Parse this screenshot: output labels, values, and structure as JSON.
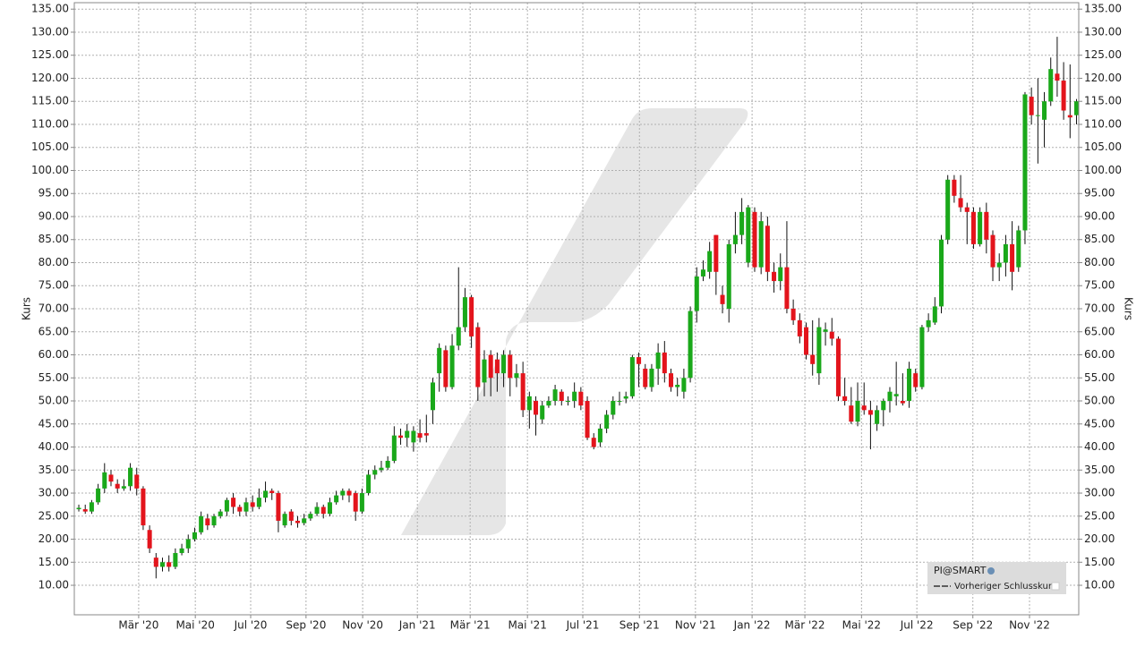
{
  "chart_data": {
    "type": "candlestick",
    "y_label": "Kurs",
    "legend": [
      "PI@SMART",
      "Vorheriger Schlusskurs"
    ],
    "legend_position": "lower right",
    "up_color": "#1aa81a",
    "down_color": "#e3141c",
    "grid": true,
    "ylim": [
      3.6,
      136.4
    ],
    "yticks": [
      {
        "value": 10,
        "label": "10.00"
      },
      {
        "value": 15,
        "label": "15.00"
      },
      {
        "value": 20,
        "label": "20.00"
      },
      {
        "value": 25,
        "label": "25.00"
      },
      {
        "value": 30,
        "label": "30.00"
      },
      {
        "value": 35,
        "label": "35.00"
      },
      {
        "value": 40,
        "label": "40.00"
      },
      {
        "value": 45,
        "label": "45.00"
      },
      {
        "value": 50,
        "label": "50.00"
      },
      {
        "value": 55,
        "label": "55.00"
      },
      {
        "value": 60,
        "label": "60.00"
      },
      {
        "value": 65,
        "label": "65.00"
      },
      {
        "value": 70,
        "label": "70.00"
      },
      {
        "value": 75,
        "label": "75.00"
      },
      {
        "value": 80,
        "label": "80.00"
      },
      {
        "value": 85,
        "label": "85.00"
      },
      {
        "value": 90,
        "label": "90.00"
      },
      {
        "value": 95,
        "label": "95.00"
      },
      {
        "value": 100,
        "label": "100.00"
      },
      {
        "value": 105,
        "label": "105.00"
      },
      {
        "value": 110,
        "label": "110.00"
      },
      {
        "value": 115,
        "label": "115.00"
      },
      {
        "value": 120,
        "label": "120.00"
      },
      {
        "value": 125,
        "label": "125.00"
      },
      {
        "value": 130,
        "label": "130.00"
      },
      {
        "value": 135,
        "label": "135.00"
      }
    ],
    "xlim": [
      -0.7,
      155.35
    ],
    "xticks": [
      {
        "value": 9.3,
        "label": "Mär '20"
      },
      {
        "value": 18.1,
        "label": "Mai '20"
      },
      {
        "value": 26.7,
        "label": "Jul '20"
      },
      {
        "value": 35.3,
        "label": "Sep '20"
      },
      {
        "value": 44.1,
        "label": "Nov '20"
      },
      {
        "value": 52.6,
        "label": "Jan '21"
      },
      {
        "value": 60.8,
        "label": "Mär '21"
      },
      {
        "value": 69.7,
        "label": "Mai '21"
      },
      {
        "value": 78.3,
        "label": "Jul '21"
      },
      {
        "value": 87.1,
        "label": "Sep '21"
      },
      {
        "value": 95.8,
        "label": "Nov '21"
      },
      {
        "value": 104.6,
        "label": "Jan '22"
      },
      {
        "value": 112.8,
        "label": "Mär '22"
      },
      {
        "value": 121.6,
        "label": "Mai '22"
      },
      {
        "value": 130.2,
        "label": "Jul '22"
      },
      {
        "value": 138.9,
        "label": "Sep '22"
      },
      {
        "value": 147.7,
        "label": "Nov '22"
      }
    ],
    "open": [
      26.5,
      26.5,
      26,
      28,
      31,
      34,
      32,
      31,
      31.5,
      34,
      31,
      22,
      16,
      14,
      15,
      14,
      17,
      18,
      20,
      21.5,
      24.5,
      23,
      25,
      26,
      29,
      27,
      26,
      28,
      27,
      29,
      30.5,
      30,
      23,
      26,
      24,
      23.5,
      24.5,
      25.5,
      27,
      25.5,
      28,
      29.5,
      30.5,
      30,
      26,
      30,
      34,
      35,
      35.5,
      37,
      42.5,
      42,
      41,
      43,
      43,
      48,
      56,
      61,
      53,
      62,
      66,
      72.5,
      66,
      54,
      60,
      59,
      56,
      60,
      55,
      56,
      48,
      50,
      46,
      49,
      50,
      52,
      50,
      50,
      52,
      50,
      42,
      41,
      44,
      47,
      50,
      50.5,
      51,
      59.5,
      57,
      53,
      57,
      60.5,
      56,
      53,
      52,
      55,
      69.5,
      77,
      78,
      86,
      73,
      70,
      84,
      86,
      80,
      91,
      79,
      88,
      78,
      76,
      79,
      70,
      67.5,
      66,
      60,
      56,
      65,
      65,
      63.5,
      51,
      49,
      45.5,
      49,
      48,
      45,
      48,
      50,
      51,
      50,
      50,
      56,
      53,
      66,
      67,
      70.5,
      85,
      98,
      94,
      92,
      91,
      84,
      91,
      86,
      79,
      80,
      84,
      79,
      87,
      116,
      112,
      111,
      115,
      121,
      119.5,
      112,
      112
    ],
    "high": [
      27.5,
      27.5,
      28.5,
      32,
      36.5,
      35,
      33,
      33,
      36.5,
      35.5,
      31.5,
      23,
      17,
      16,
      16.5,
      18,
      19,
      21,
      22.5,
      26,
      25.5,
      25.5,
      26.5,
      29,
      30,
      27.5,
      29,
      29.5,
      31,
      32.5,
      31,
      30.5,
      26,
      26.5,
      25,
      25.5,
      26,
      28,
      27.5,
      29,
      30.5,
      31,
      31,
      30.5,
      31,
      35,
      36,
      37,
      38,
      44.5,
      44,
      45,
      44.5,
      46,
      47,
      55,
      62.5,
      62,
      64.5,
      79,
      74.5,
      73,
      67,
      61,
      61,
      60.5,
      61,
      61,
      58,
      58.5,
      52,
      51,
      50,
      51,
      53.5,
      52.5,
      51,
      54,
      53,
      51,
      43,
      45,
      48,
      51,
      52,
      52,
      60,
      60.5,
      58,
      58,
      62.5,
      63,
      57,
      55,
      57,
      70.5,
      79,
      80.5,
      84.5,
      86,
      75,
      85,
      91,
      94,
      92.5,
      92,
      91,
      90,
      80,
      82,
      89,
      72,
      69,
      67,
      67.5,
      68,
      67,
      68,
      64,
      55,
      53,
      54,
      54,
      50,
      49,
      50.5,
      53,
      58.5,
      56,
      58.5,
      57,
      66.5,
      69,
      72.5,
      86,
      99,
      99,
      99,
      93,
      92,
      92,
      93,
      87,
      82,
      86,
      89,
      88,
      117,
      118,
      120,
      117,
      124.5,
      129,
      123.5,
      123,
      115.5
    ],
    "low": [
      26,
      25.5,
      25.5,
      27.5,
      30,
      31.5,
      30,
      30.5,
      30.5,
      29.5,
      22,
      17,
      11.5,
      13,
      13,
      13.5,
      16.5,
      17,
      19.5,
      21,
      22,
      22.5,
      24.5,
      25,
      25.5,
      25,
      25,
      26,
      26.5,
      28,
      28.5,
      21.5,
      22.5,
      23,
      22.5,
      23,
      24,
      25,
      24.5,
      25,
      27.5,
      28.5,
      28,
      24,
      25.5,
      29.5,
      33,
      34.5,
      35,
      36.5,
      40.5,
      40,
      39,
      41,
      41,
      45,
      52,
      52,
      52.5,
      61,
      65,
      61.5,
      50,
      51,
      51,
      52,
      53,
      51,
      53,
      46.5,
      44,
      42.5,
      45,
      48.5,
      49,
      49,
      49,
      48.5,
      48,
      41.5,
      39.5,
      40,
      43,
      46,
      49,
      49.5,
      50.5,
      53,
      52.5,
      52,
      53.5,
      54,
      52,
      51,
      50.5,
      54,
      67,
      76,
      76.5,
      73,
      69,
      67,
      82,
      84,
      79,
      78,
      77.5,
      76,
      73.5,
      74,
      69,
      66.5,
      62.5,
      59,
      55.5,
      53.5,
      62,
      62,
      50,
      49,
      45,
      44.5,
      47,
      39.5,
      43.5,
      44.5,
      47.5,
      49,
      49,
      48.5,
      52,
      52.5,
      65,
      66.5,
      69,
      84,
      93,
      91,
      84,
      83,
      83.5,
      82,
      76,
      76,
      77,
      74,
      78,
      84,
      110,
      101.5,
      105,
      114,
      116,
      111,
      107,
      110
    ],
    "close": [
      26.8,
      26,
      28,
      31,
      34.5,
      32.5,
      31,
      31.5,
      35.5,
      31,
      23,
      18,
      14,
      15,
      14,
      17,
      18,
      20,
      21.5,
      25,
      23,
      25,
      26,
      28.5,
      27,
      26,
      28,
      27,
      29,
      30.5,
      30,
      24,
      25.5,
      24,
      23.5,
      24.5,
      25.5,
      27,
      25.5,
      28,
      29.5,
      30.5,
      29.5,
      26,
      30,
      34,
      35,
      35.5,
      37,
      42.5,
      42,
      43.5,
      43.5,
      42,
      42.5,
      54,
      61.5,
      53,
      62,
      66,
      72.5,
      64,
      53,
      59,
      55,
      56,
      60,
      55,
      56,
      48,
      51,
      47,
      49,
      50,
      52.5,
      50,
      50,
      52,
      49,
      42,
      40,
      44,
      47,
      50,
      50,
      51,
      59.5,
      58,
      53,
      57,
      60.5,
      56,
      53,
      53.5,
      55,
      69.5,
      77,
      78.5,
      82.5,
      78,
      71,
      84,
      86,
      91,
      92,
      79,
      89,
      78,
      76,
      79,
      70,
      67.5,
      64,
      60,
      58,
      66,
      65.5,
      63.5,
      51,
      50,
      45.5,
      50,
      48,
      47,
      48,
      50,
      52,
      51.5,
      49.5,
      57,
      53,
      66,
      67.5,
      70.5,
      85,
      98,
      94.5,
      92,
      91,
      84,
      91,
      85,
      79,
      80,
      84,
      78,
      87,
      116.5,
      112,
      112,
      115,
      122,
      119.5,
      113,
      111.5,
      115
    ]
  }
}
